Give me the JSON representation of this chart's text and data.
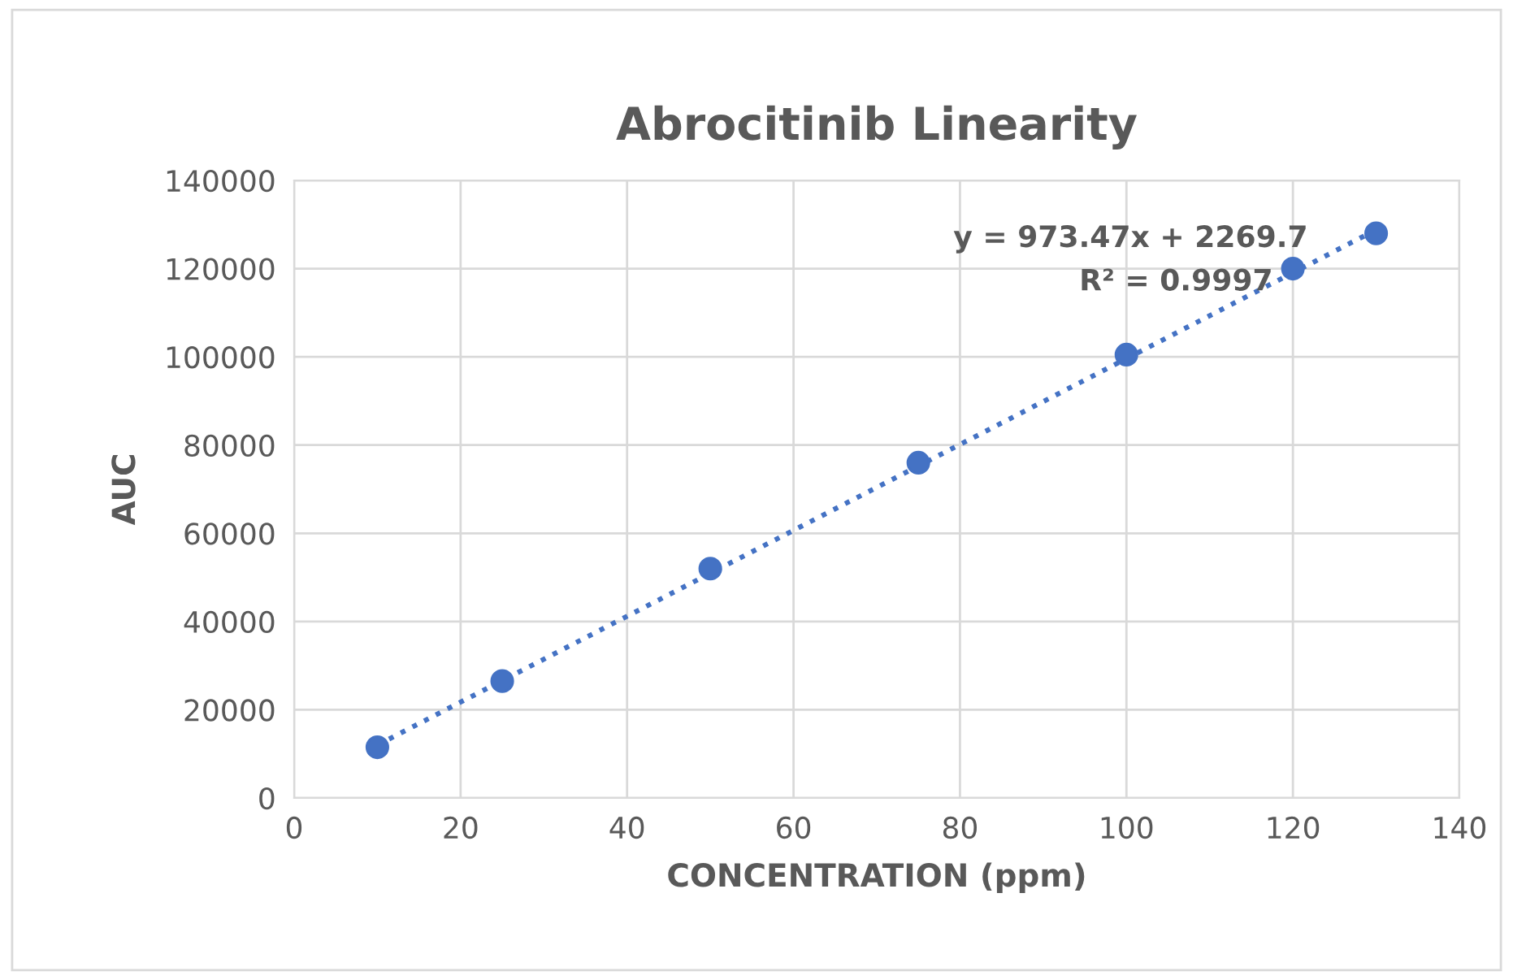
{
  "chart_data": {
    "type": "scatter",
    "title": "Abrocitinib Linearity",
    "xlabel": "CONCENTRATION (ppm)",
    "ylabel": "AUC",
    "series": [
      {
        "color": "#4472c4",
        "x": [
          10,
          25,
          50,
          75,
          100,
          120,
          130
        ],
        "values": [
          11500,
          26500,
          52000,
          76000,
          100500,
          120000,
          128000
        ],
        "marker": "circle"
      },
      {
        "type": "line",
        "color": "#4472c4",
        "x": [
          10,
          130
        ],
        "values": [
          12000,
          128800
        ],
        "line_style": "dotted",
        "marker": "none"
      }
    ],
    "annotations": [
      "y = 973.47x + 2269.7",
      "R² = 0.9997"
    ],
    "xlim": [
      0,
      140
    ],
    "xticks": [
      0,
      20,
      40,
      60,
      80,
      100,
      120,
      140
    ],
    "ylim": [
      0,
      140000
    ],
    "yticks": [
      0,
      20000,
      40000,
      60000,
      80000,
      100000,
      120000,
      140000
    ],
    "grid": true,
    "legend": false
  }
}
